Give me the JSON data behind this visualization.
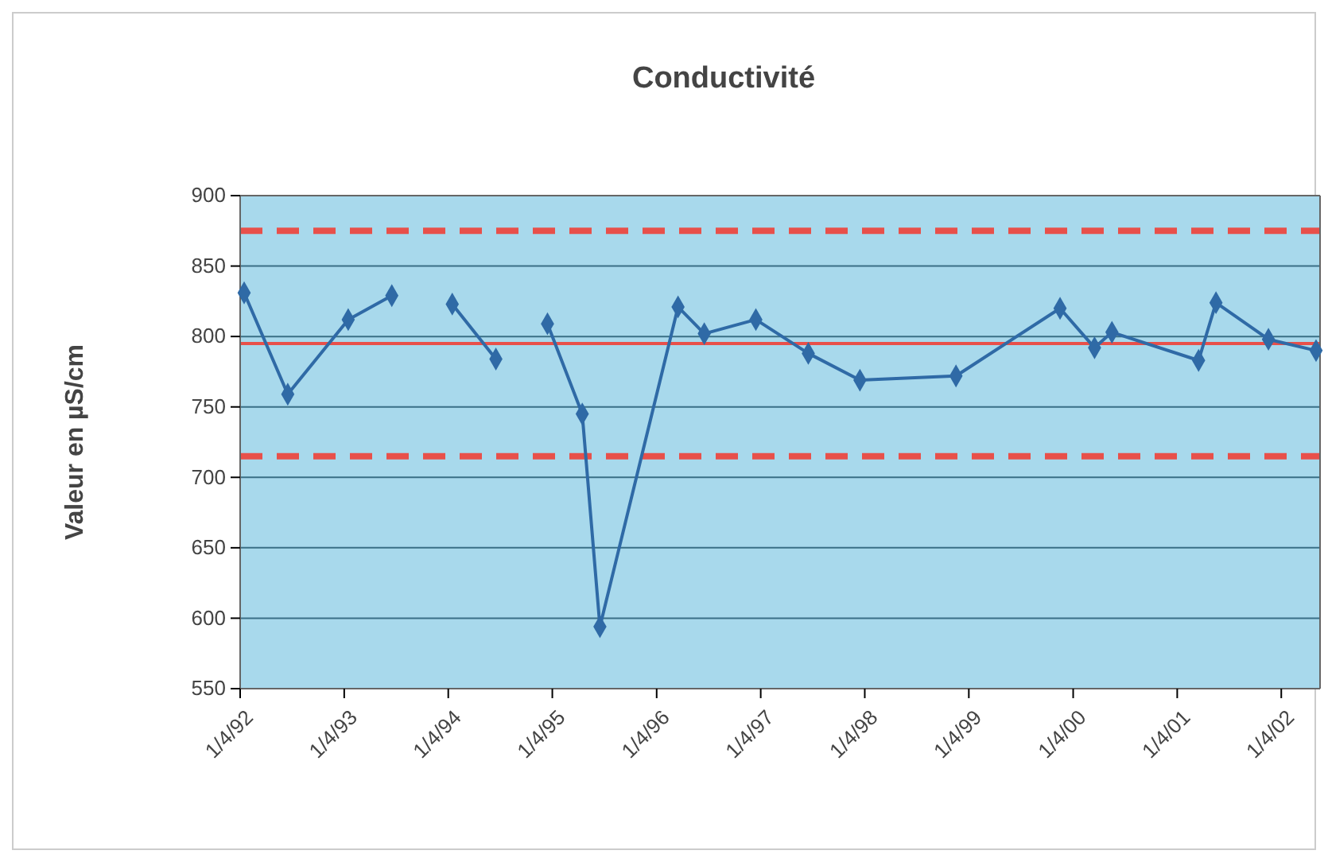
{
  "chart_data": {
    "type": "line",
    "title": "Conductivité",
    "ylabel": "Valeur en µS/cm",
    "x": [
      "1992-04-15",
      "1992-09-15",
      "1993-04-15",
      "1993-09-15",
      "1994-01-01",
      "1994-04-15",
      "1994-09-15",
      "1995-01-01",
      "1995-03-15",
      "1995-07-15",
      "1995-09-15",
      "1996-06-15",
      "1996-09-15",
      "1997-03-15",
      "1997-09-15",
      "1998-03-15",
      "1999-02-15",
      "2000-02-15",
      "2000-06-15",
      "2000-08-15",
      "2001-06-15",
      "2001-08-15",
      "2002-02-15",
      "2002-08-01"
    ],
    "series": [
      {
        "color": "#2f6aa6",
        "values": [
          831,
          759,
          812,
          829,
          null,
          823,
          784,
          null,
          809,
          745,
          594,
          821,
          802,
          812,
          788,
          769,
          772,
          820,
          792,
          803,
          783,
          824,
          798,
          790
        ]
      }
    ],
    "xlim": [
      "1992-04-01",
      "2002-08-15"
    ],
    "xticks": [
      {
        "value": "1992-04-01",
        "label": "1/4/92"
      },
      {
        "value": "1993-04-01",
        "label": "1/4/93"
      },
      {
        "value": "1994-04-01",
        "label": "1/4/94"
      },
      {
        "value": "1995-04-01",
        "label": "1/4/95"
      },
      {
        "value": "1996-04-01",
        "label": "1/4/96"
      },
      {
        "value": "1997-04-01",
        "label": "1/4/97"
      },
      {
        "value": "1998-04-01",
        "label": "1/4/98"
      },
      {
        "value": "1999-04-01",
        "label": "1/4/99"
      },
      {
        "value": "2000-04-01",
        "label": "1/4/00"
      },
      {
        "value": "2001-04-01",
        "label": "1/4/01"
      },
      {
        "value": "2002-04-01",
        "label": "1/4/02"
      }
    ],
    "ylim": [
      550,
      900
    ],
    "yticks": [
      550,
      600,
      650,
      700,
      750,
      800,
      850,
      900
    ],
    "grid": "y",
    "marker": "diamond",
    "line_style": "solid",
    "ref_lines": [
      {
        "axis": "y",
        "value": 875,
        "color": "#e8504a",
        "line_style": "dashed"
      },
      {
        "axis": "y",
        "value": 795,
        "color": "#e8504a",
        "line_style": "solid"
      },
      {
        "axis": "y",
        "value": 715,
        "color": "#e8504a",
        "line_style": "dashed"
      }
    ]
  }
}
